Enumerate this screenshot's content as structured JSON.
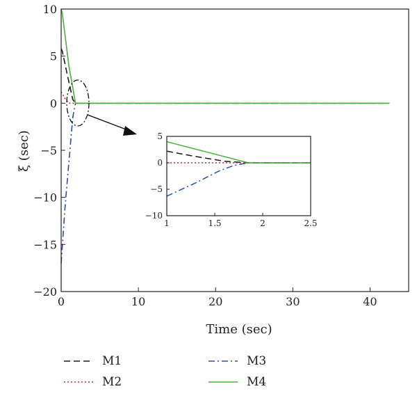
{
  "chart_data": {
    "type": "line",
    "title": "",
    "xlabel": "Time (sec)",
    "ylabel": "ξ (sec)",
    "xlim": [
      0,
      45
    ],
    "ylim": [
      -20,
      10
    ],
    "xticks": [
      0,
      10,
      20,
      30,
      40
    ],
    "yticks": [
      -20,
      -15,
      -10,
      -5,
      0,
      5,
      10
    ],
    "grid": false,
    "legend_position": "bottom",
    "series": [
      {
        "name": "M1",
        "color": "#1a1a1a",
        "style": "dashed",
        "x": [
          0,
          0.15,
          0.8,
          1.5,
          1.85,
          42.5
        ],
        "y": [
          5.8,
          5.5,
          3.0,
          0.4,
          0,
          0
        ]
      },
      {
        "name": "M2",
        "color": "#d62728",
        "style": "dotted",
        "x": [
          0,
          0.5,
          1.0,
          1.85,
          42.5
        ],
        "y": [
          1.2,
          0.5,
          0,
          0,
          0
        ]
      },
      {
        "name": "M3",
        "color": "#2b4fa8",
        "style": "dashdot",
        "x": [
          0,
          0.1,
          0.5,
          1.0,
          1.5,
          1.85,
          42.5
        ],
        "y": [
          -17,
          -15.8,
          -11,
          -6.3,
          -1.5,
          0,
          0
        ]
      },
      {
        "name": "M4",
        "color": "#4caf3e",
        "style": "solid",
        "x": [
          0,
          0.15,
          1.0,
          1.85,
          42.5
        ],
        "y": [
          10,
          9.5,
          4.0,
          0,
          0
        ]
      }
    ],
    "inset": {
      "xlim": [
        1,
        2.5
      ],
      "ylim": [
        -10,
        5
      ],
      "xticks": [
        1,
        1.5,
        2,
        2.5
      ],
      "yticks": [
        -10,
        -5,
        0,
        5
      ],
      "series": [
        {
          "name": "M1",
          "x": [
            1.0,
            1.3,
            1.6,
            1.85,
            2.5
          ],
          "y": [
            2.2,
            1.2,
            0.3,
            0,
            0
          ]
        },
        {
          "name": "M2",
          "x": [
            1.0,
            1.85,
            2.5
          ],
          "y": [
            0,
            0,
            0
          ]
        },
        {
          "name": "M3",
          "x": [
            1.0,
            1.3,
            1.55,
            1.7,
            1.85,
            2.5
          ],
          "y": [
            -6.3,
            -3.8,
            -1.5,
            -0.5,
            0,
            0
          ]
        },
        {
          "name": "M4",
          "x": [
            1.0,
            1.85,
            2.5
          ],
          "y": [
            4.0,
            0,
            0
          ]
        }
      ]
    }
  }
}
